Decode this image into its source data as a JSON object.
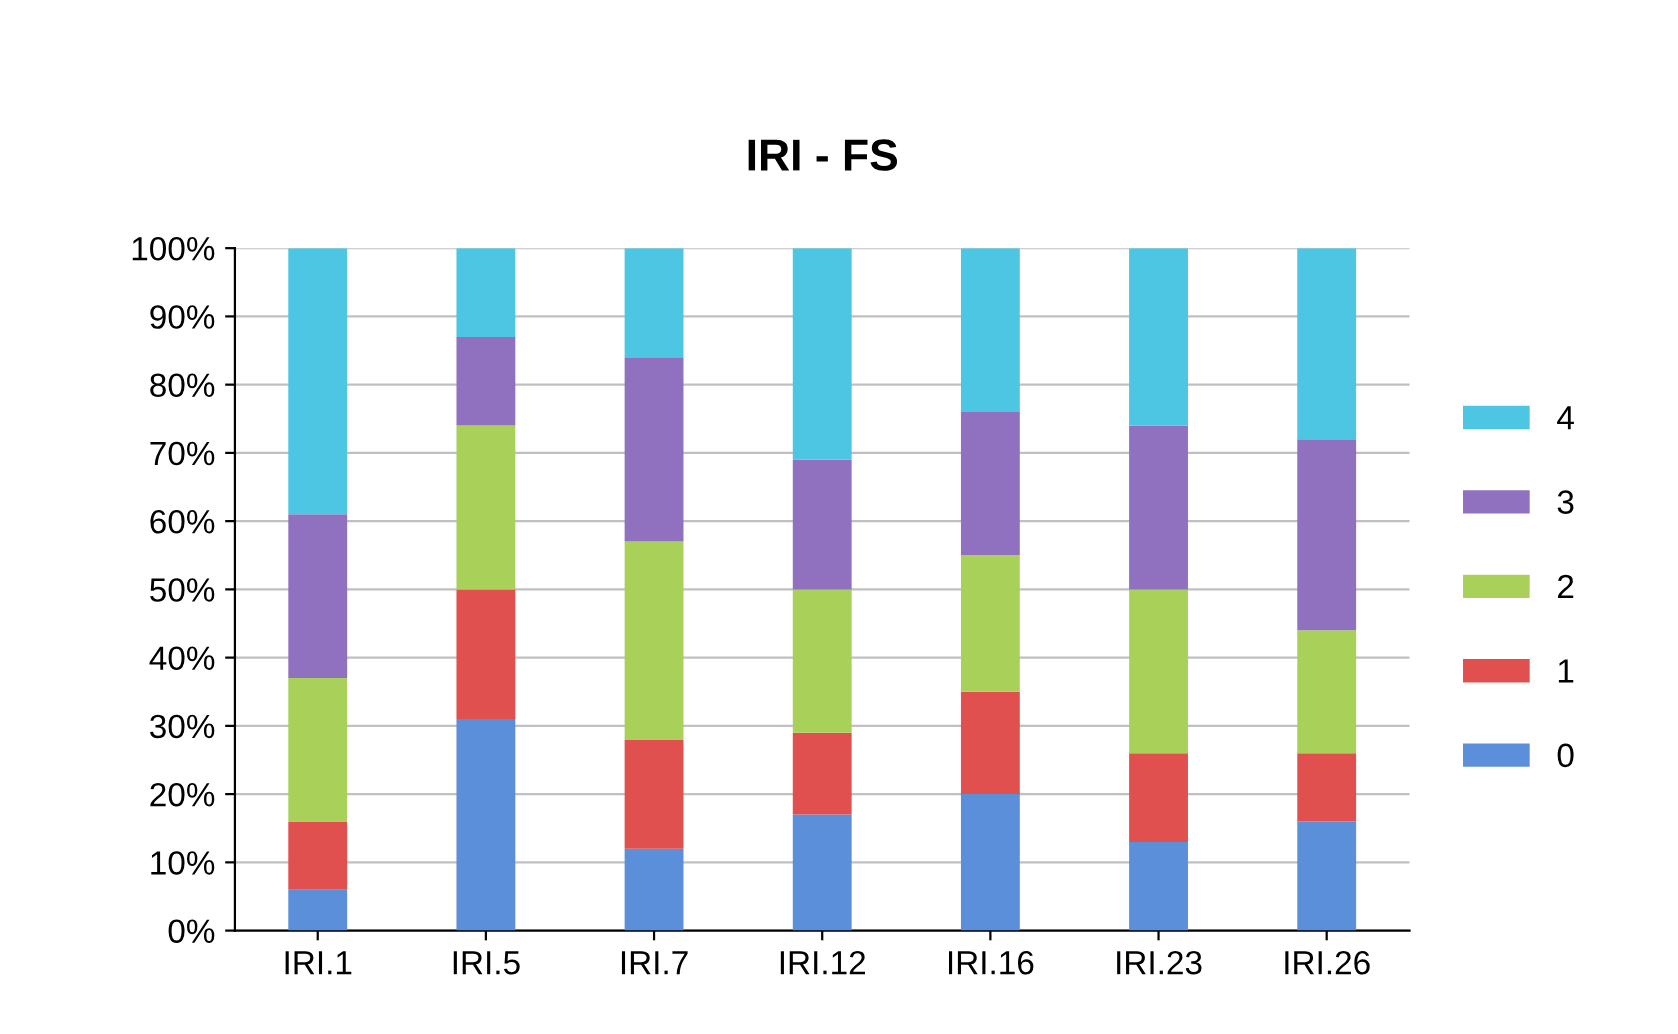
{
  "chart_data": {
    "type": "bar",
    "title": "IRI - FS",
    "stacked": true,
    "categories": [
      "IRI.1",
      "IRI.5",
      "IRI.7",
      "IRI.12",
      "IRI.16",
      "IRI.23",
      "IRI.26"
    ],
    "series": [
      {
        "name": "0",
        "color": "#5b8fd9",
        "values": [
          6,
          31,
          12,
          17,
          20,
          13,
          16
        ]
      },
      {
        "name": "1",
        "color": "#e0504f",
        "values": [
          10,
          19,
          16,
          12,
          15,
          13,
          10
        ]
      },
      {
        "name": "2",
        "color": "#a9d15a",
        "values": [
          21,
          24,
          29,
          21,
          20,
          24,
          18
        ]
      },
      {
        "name": "3",
        "color": "#9071c0",
        "values": [
          24,
          13,
          27,
          19,
          21,
          24,
          28
        ]
      },
      {
        "name": "4",
        "color": "#4cc6e3",
        "values": [
          39,
          13,
          16,
          31,
          24,
          26,
          28
        ]
      }
    ],
    "ylim": [
      0,
      100
    ],
    "yticks": [
      {
        "value": 0,
        "label": "0%"
      },
      {
        "value": 10,
        "label": "10%"
      },
      {
        "value": 20,
        "label": "20%"
      },
      {
        "value": 30,
        "label": "30%"
      },
      {
        "value": 40,
        "label": "40%"
      },
      {
        "value": 50,
        "label": "50%"
      },
      {
        "value": 60,
        "label": "60%"
      },
      {
        "value": 70,
        "label": "70%"
      },
      {
        "value": 80,
        "label": "80%"
      },
      {
        "value": 90,
        "label": "90%"
      },
      {
        "value": 100,
        "label": "100%"
      }
    ],
    "grid": "y",
    "legend": "right"
  }
}
